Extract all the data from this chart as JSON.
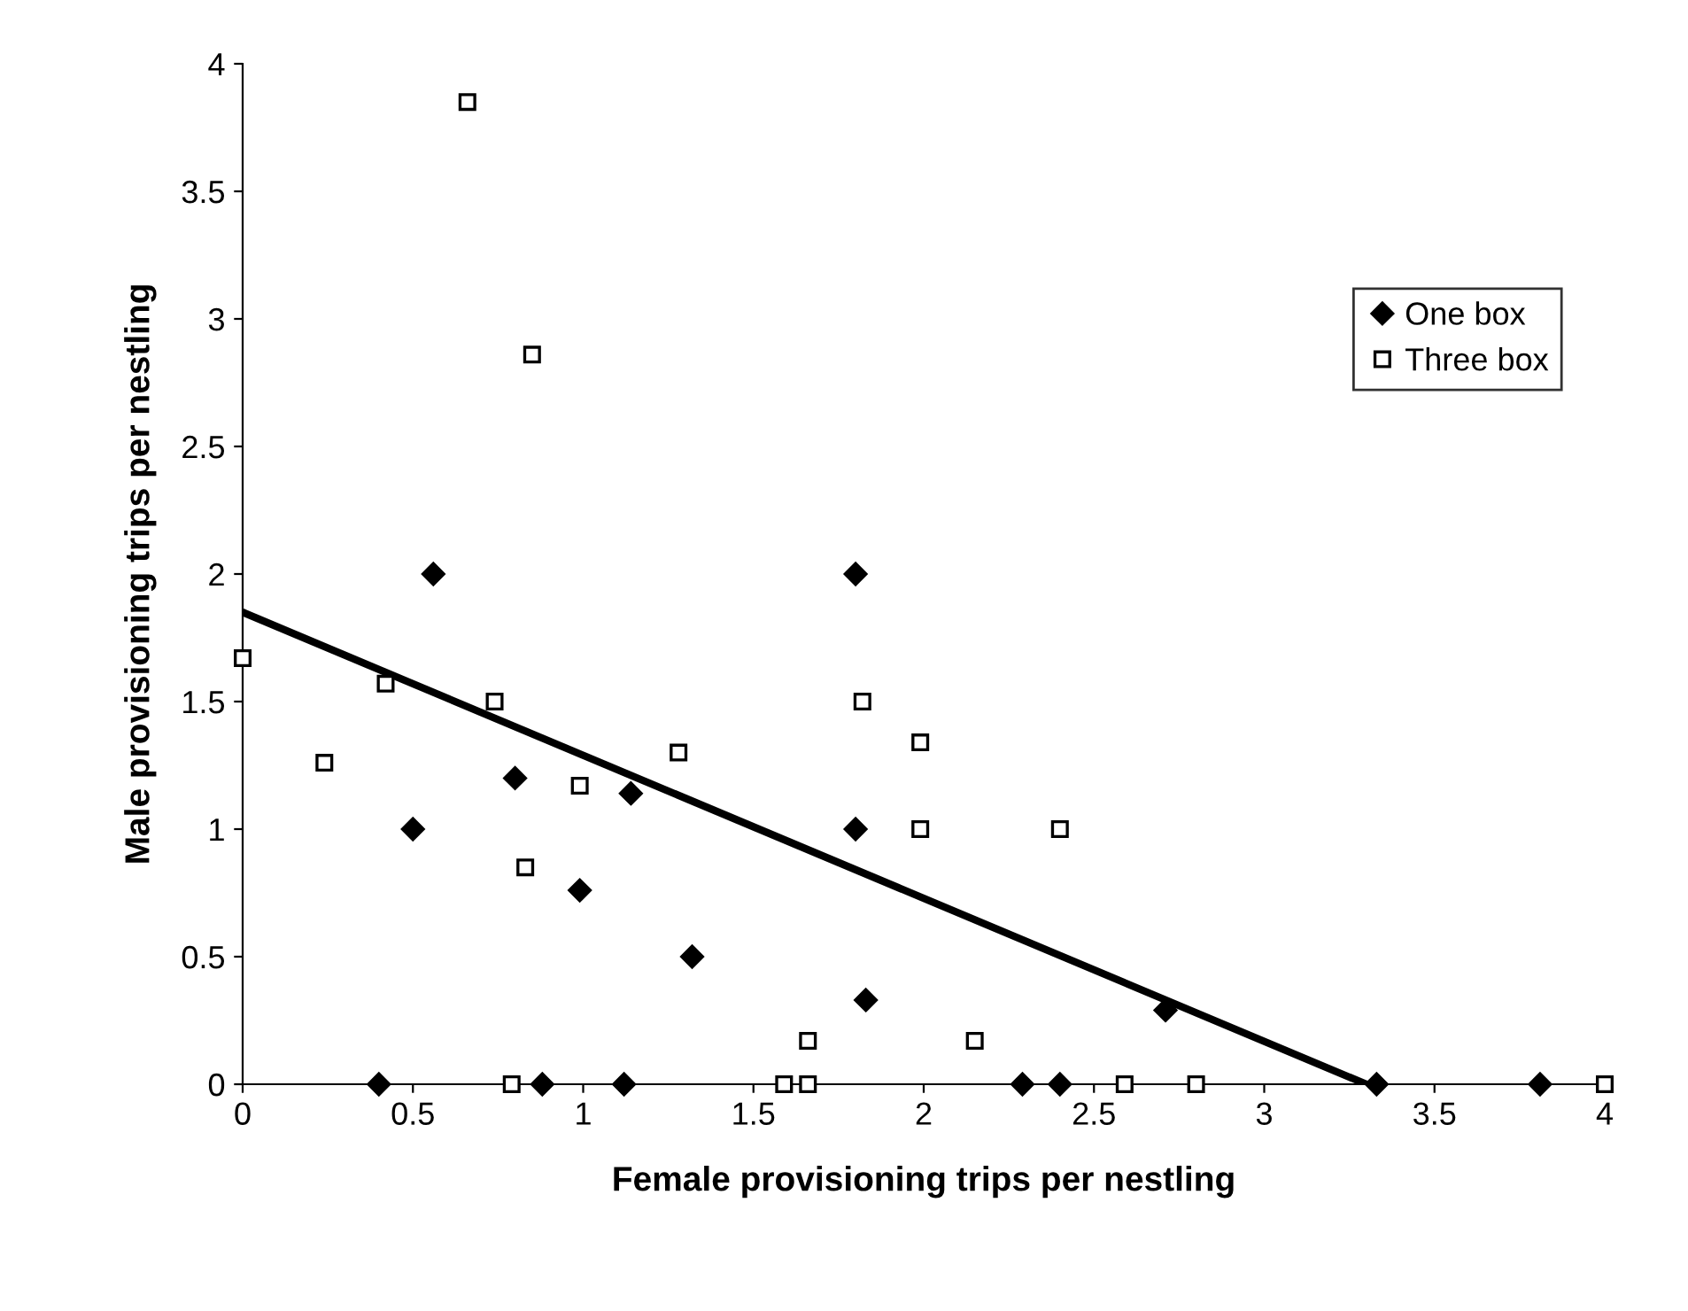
{
  "chart_data": {
    "type": "scatter",
    "xlabel": "Female provisioning trips per nestling",
    "ylabel": "Male provisioning trips per nestling",
    "series": [
      {
        "name": "One box",
        "color": "#000000",
        "marker": "diamond",
        "x": [
          0.56,
          1.8,
          0.5,
          0.8,
          0.99,
          1.14,
          1.32,
          1.8,
          1.83,
          2.71,
          0.4,
          0.88,
          1.12,
          2.29,
          2.4,
          3.33,
          3.81
        ],
        "values": [
          2.0,
          2.0,
          1.0,
          1.2,
          0.76,
          1.14,
          0.5,
          1.0,
          0.33,
          0.29,
          0,
          0,
          0,
          0,
          0,
          0,
          0
        ]
      },
      {
        "name": "Three box",
        "color": "#000000",
        "marker": "square",
        "x": [
          0.66,
          0.85,
          0,
          0.42,
          0.24,
          0.74,
          0.99,
          0.83,
          1.28,
          1.82,
          1.99,
          1.99,
          2.4,
          1.66,
          2.15,
          0.79,
          1.59,
          1.66,
          2.59,
          2.8,
          4.0
        ],
        "values": [
          3.85,
          2.86,
          1.67,
          1.57,
          1.26,
          1.5,
          1.17,
          0.85,
          1.3,
          1.5,
          1.34,
          1.0,
          1.0,
          0.17,
          0.17,
          0,
          0,
          0,
          0,
          0,
          0
        ]
      },
      {
        "type": "line",
        "color": "#000000",
        "x": [
          0,
          3.3
        ],
        "values": [
          1.85,
          0
        ]
      }
    ],
    "xlim": [
      0,
      4
    ],
    "ylim": [
      0,
      4
    ],
    "xticks": [
      0,
      0.5,
      1,
      1.5,
      2,
      2.5,
      3,
      3.5,
      4
    ],
    "yticks": [
      0,
      0.5,
      1,
      1.5,
      2,
      2.5,
      3,
      3.5,
      4
    ],
    "grid": false,
    "legend": "right"
  }
}
